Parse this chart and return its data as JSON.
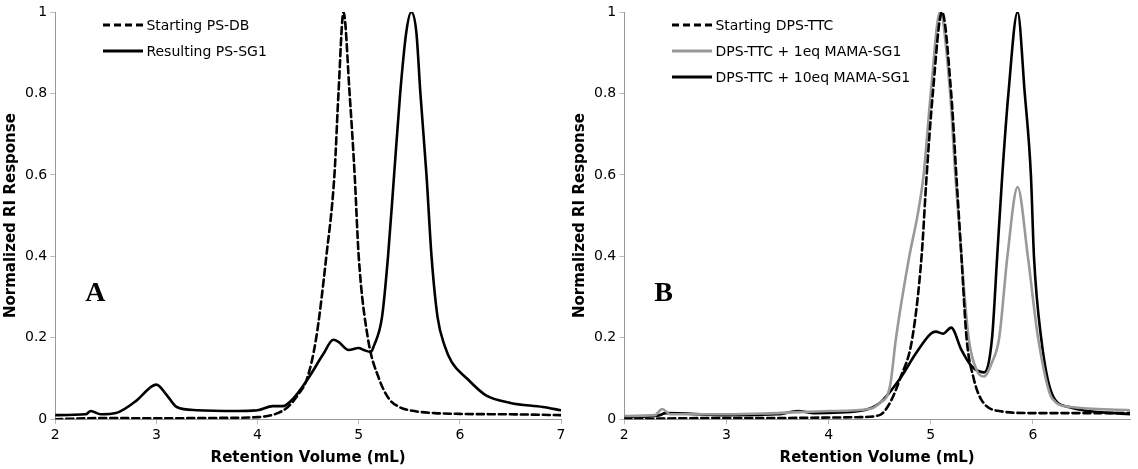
{
  "chart_data": [
    {
      "type": "line",
      "xlabel": "Retention Volume (mL)",
      "ylabel": "Normalized RI Response",
      "xlim": [
        2,
        7
      ],
      "xticks": [
        2,
        3,
        4,
        5,
        6,
        7
      ],
      "ylim": [
        0,
        1
      ],
      "yticks": [
        0,
        0.2,
        0.4,
        0.6,
        0.8,
        1
      ],
      "grid": false,
      "legend": "top left",
      "marker": "none",
      "annotations": [
        "A"
      ],
      "series": [
        {
          "name": "Starting PS-DB",
          "color": "#000000",
          "line_style": "dashed",
          "x": [
            2.0,
            2.5,
            3.0,
            3.5,
            4.0,
            4.2,
            4.3,
            4.4,
            4.49,
            4.58,
            4.68,
            4.76,
            4.8,
            4.85,
            4.91,
            4.96,
            5.0,
            5.09,
            5.2,
            5.3,
            5.4,
            5.5,
            5.75,
            6.0,
            6.5,
            7.0
          ],
          "values": [
            0.0,
            0.003,
            0.002,
            0.003,
            0.005,
            0.015,
            0.03,
            0.06,
            0.1,
            0.2,
            0.4,
            0.6,
            0.8,
            1.0,
            0.8,
            0.6,
            0.4,
            0.2,
            0.1,
            0.05,
            0.03,
            0.022,
            0.015,
            0.013,
            0.012,
            0.01
          ]
        },
        {
          "name": "Resulting PS-SG1",
          "color": "#000000",
          "line_style": "solid",
          "x": [
            2.0,
            2.3,
            2.35,
            2.45,
            2.6,
            2.8,
            2.95,
            3.0,
            3.1,
            3.2,
            3.4,
            3.8,
            4.0,
            4.15,
            4.25,
            4.35,
            4.5,
            4.65,
            4.75,
            4.8,
            4.9,
            5.0,
            5.05,
            5.12,
            5.15,
            5.23,
            5.29,
            5.35,
            5.41,
            5.47,
            5.52,
            5.57,
            5.61,
            5.67,
            5.72,
            5.78,
            5.85,
            5.92,
            6.07,
            6.25,
            6.5,
            6.82,
            7.0
          ],
          "values": [
            0.01,
            0.012,
            0.02,
            0.012,
            0.015,
            0.045,
            0.08,
            0.085,
            0.06,
            0.03,
            0.022,
            0.02,
            0.022,
            0.032,
            0.032,
            0.05,
            0.1,
            0.16,
            0.195,
            0.19,
            0.17,
            0.175,
            0.17,
            0.165,
            0.18,
            0.25,
            0.4,
            0.6,
            0.8,
            0.95,
            1.0,
            0.95,
            0.8,
            0.6,
            0.4,
            0.25,
            0.18,
            0.14,
            0.1,
            0.06,
            0.04,
            0.03,
            0.022
          ]
        }
      ]
    },
    {
      "type": "line",
      "xlabel": "Retention Volume (mL)",
      "ylabel": "Normalized RI Response",
      "xlim": [
        2,
        6.95
      ],
      "xticks": [
        2,
        3,
        4,
        5,
        6
      ],
      "ylim": [
        0,
        1
      ],
      "yticks": [
        0,
        0.2,
        0.4,
        0.6,
        0.8,
        1
      ],
      "grid": false,
      "legend": "top left",
      "marker": "none",
      "annotations": [
        "B"
      ],
      "series": [
        {
          "name": "Starting DPS-TTC",
          "color": "#000000",
          "line_style": "dashed",
          "x": [
            2.0,
            2.5,
            3.0,
            3.5,
            4.0,
            4.3,
            4.5,
            4.6,
            4.7,
            4.82,
            4.91,
            4.96,
            5.02,
            5.11,
            5.2,
            5.25,
            5.3,
            5.35,
            5.42,
            5.49,
            5.67,
            6.0,
            6.5,
            6.95
          ],
          "values": [
            0.0,
            0.002,
            0.003,
            0.003,
            0.004,
            0.005,
            0.01,
            0.04,
            0.1,
            0.2,
            0.4,
            0.6,
            0.8,
            1.0,
            0.8,
            0.6,
            0.4,
            0.2,
            0.1,
            0.05,
            0.02,
            0.015,
            0.015,
            0.015
          ]
        },
        {
          "name": "DPS-TTC + 1eq MAMA-SG1",
          "color": "#999999",
          "line_style": "solid",
          "x": [
            2.0,
            2.3,
            2.37,
            2.45,
            3.0,
            3.5,
            4.0,
            4.4,
            4.5,
            4.6,
            4.66,
            4.79,
            4.87,
            4.93,
            5.0,
            5.09,
            5.19,
            5.24,
            5.3,
            5.37,
            5.45,
            5.52,
            5.6,
            5.67,
            5.75,
            5.85,
            5.95,
            6.05,
            6.19,
            6.37,
            6.95
          ],
          "values": [
            0.008,
            0.01,
            0.025,
            0.012,
            0.012,
            0.015,
            0.02,
            0.025,
            0.04,
            0.08,
            0.2,
            0.4,
            0.5,
            0.6,
            0.8,
            1.0,
            0.8,
            0.6,
            0.4,
            0.2,
            0.12,
            0.105,
            0.14,
            0.2,
            0.4,
            0.57,
            0.4,
            0.2,
            0.05,
            0.03,
            0.022
          ]
        },
        {
          "name": "DPS-TTC + 10eq MAMA-SG1",
          "color": "#000000",
          "line_style": "solid",
          "x": [
            2.0,
            2.35,
            2.4,
            3.0,
            3.5,
            3.7,
            3.85,
            4.3,
            4.5,
            4.7,
            4.85,
            5.0,
            5.05,
            5.12,
            5.2,
            5.3,
            5.4,
            5.52,
            5.6,
            5.65,
            5.7,
            5.76,
            5.85,
            5.92,
            5.98,
            6.01,
            6.08,
            6.19,
            6.35,
            6.95
          ],
          "values": [
            0.005,
            0.01,
            0.015,
            0.01,
            0.012,
            0.02,
            0.015,
            0.02,
            0.04,
            0.1,
            0.16,
            0.21,
            0.215,
            0.21,
            0.225,
            0.17,
            0.13,
            0.115,
            0.2,
            0.4,
            0.6,
            0.8,
            1.0,
            0.8,
            0.6,
            0.4,
            0.2,
            0.06,
            0.03,
            0.012
          ]
        }
      ]
    }
  ]
}
